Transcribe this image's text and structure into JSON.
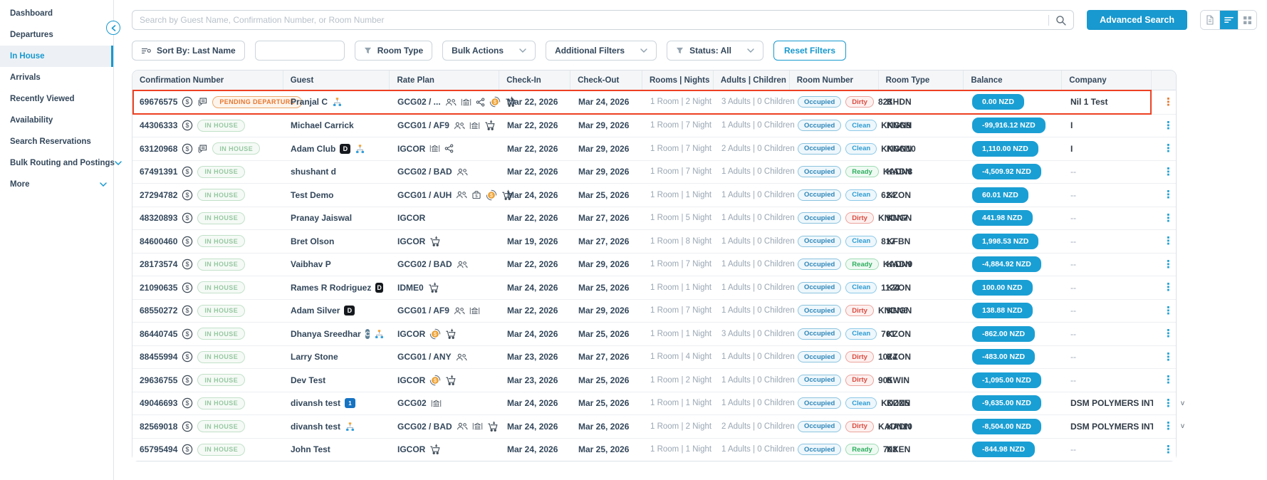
{
  "colors": {
    "accent": "#1899cf",
    "balance_pill": "#1a9fd4",
    "highlight_red": "#ee4123",
    "pending_orange": "#e8772e",
    "inhouse_green": "#96c8a1"
  },
  "sidebar": {
    "items": [
      {
        "label": "Dashboard",
        "active": false,
        "chevron": false
      },
      {
        "label": "Departures",
        "active": false,
        "chevron": false
      },
      {
        "label": "In House",
        "active": true,
        "chevron": false
      },
      {
        "label": "Arrivals",
        "active": false,
        "chevron": false
      },
      {
        "label": "Recently Viewed",
        "active": false,
        "chevron": false
      },
      {
        "label": "Availability",
        "active": false,
        "chevron": false
      },
      {
        "label": "Search Reservations",
        "active": false,
        "chevron": false
      },
      {
        "label": "Bulk Routing and Postings",
        "active": false,
        "chevron": true
      },
      {
        "label": "More",
        "active": false,
        "chevron": true
      }
    ],
    "collapse_icon": "chevron-left-icon"
  },
  "topbar": {
    "search_placeholder": "Search by Guest Name, Confirmation Number, or Room Number",
    "advanced_search_label": "Advanced Search",
    "view_toggle": [
      {
        "icon": "document-icon",
        "active": false
      },
      {
        "icon": "list-view-icon",
        "active": true
      },
      {
        "icon": "grid-view-icon",
        "active": false
      }
    ]
  },
  "filters": {
    "sort_by": "Sort By: Last Name",
    "room_type": "Room Type",
    "bulk_actions": "Bulk Actions",
    "additional_filters": "Additional Filters",
    "status": "Status: All",
    "reset": "Reset Filters"
  },
  "table": {
    "columns": [
      "Confirmation Number",
      "Guest",
      "Rate Plan",
      "Check-In",
      "Check-Out",
      "Rooms | Nights",
      "Adults | Children",
      "Room Number",
      "Room Type",
      "Balance",
      "Company",
      ""
    ],
    "rows": [
      {
        "confirmation": "69676575",
        "conf_icons": [
          "dollar-icon",
          "chat-icon"
        ],
        "status": {
          "label": "PENDING DEPARTURE",
          "type": "pending"
        },
        "guest": {
          "name": "Pranjal C",
          "badges": [],
          "icons": [
            "hierarchy-icon"
          ]
        },
        "rate_plan": {
          "text": "GCG02 / ...",
          "icons": [
            "group-icon",
            "building-icon",
            "share-icon",
            "coin-icon",
            "cart-icon"
          ]
        },
        "check_in": "Mar 22, 2026",
        "check_out": "Mar 24, 2026",
        "rooms_nights": "1 Room | 2 Night",
        "adults_children": "3 Adults | 0 Children",
        "room": {
          "occupancy": "Occupied",
          "housekeeping": "Dirty",
          "number": "823"
        },
        "room_type": "KHDN",
        "balance": "0.00 NZD",
        "company": "Nil 1 Test",
        "highlighted": true,
        "kebab_color": "orange",
        "trailing_mark": ""
      },
      {
        "confirmation": "44306333",
        "conf_icons": [
          "dollar-icon"
        ],
        "status": {
          "label": "IN HOUSE",
          "type": "inhouse"
        },
        "guest": {
          "name": "Michael Carrick",
          "badges": [],
          "icons": []
        },
        "rate_plan": {
          "text": "GCG01 / AF9",
          "icons": [
            "group-icon",
            "building-icon",
            "cart-icon"
          ]
        },
        "check_in": "Mar 22, 2026",
        "check_out": "Mar 29, 2026",
        "rooms_nights": "1 Room | 7 Night",
        "adults_children": "1 Adults | 0 Children",
        "room": {
          "occupancy": "Occupied",
          "housekeeping": "Clean",
          "number": "KNGN9"
        },
        "room_type": "KNGN",
        "balance": "-99,916.12 NZD",
        "company": "I",
        "highlighted": false,
        "kebab_color": "blue",
        "trailing_mark": ""
      },
      {
        "confirmation": "63120968",
        "conf_icons": [
          "dollar-icon",
          "chat-icon"
        ],
        "status": {
          "label": "IN HOUSE",
          "type": "inhouse"
        },
        "guest": {
          "name": "Adam Club",
          "badges": [
            "d-badge"
          ],
          "icons": [
            "hierarchy-icon"
          ]
        },
        "rate_plan": {
          "text": "IGCOR",
          "icons": [
            "building-icon",
            "share-icon"
          ]
        },
        "check_in": "Mar 22, 2026",
        "check_out": "Mar 29, 2026",
        "rooms_nights": "1 Room | 7 Night",
        "adults_children": "2 Adults | 0 Children",
        "room": {
          "occupancy": "Occupied",
          "housekeeping": "Clean",
          "number": "KNGN10"
        },
        "room_type": "KNGN",
        "balance": "1,110.00 NZD",
        "company": "I",
        "highlighted": false,
        "kebab_color": "blue",
        "trailing_mark": ""
      },
      {
        "confirmation": "67491391",
        "conf_icons": [
          "dollar-icon"
        ],
        "status": {
          "label": "IN HOUSE",
          "type": "inhouse"
        },
        "guest": {
          "name": "shushant d",
          "badges": [],
          "icons": []
        },
        "rate_plan": {
          "text": "GCG02 / BAD",
          "icons": [
            "group-icon"
          ]
        },
        "check_in": "Mar 22, 2026",
        "check_out": "Mar 29, 2026",
        "rooms_nights": "1 Room | 7 Night",
        "adults_children": "1 Adults | 0 Children",
        "room": {
          "occupancy": "Occupied",
          "housekeeping": "Ready",
          "number": "KADN8"
        },
        "room_type": "KADN",
        "balance": "-4,509.92 NZD",
        "company": "--",
        "highlighted": false,
        "kebab_color": "blue",
        "trailing_mark": ""
      },
      {
        "confirmation": "27294782",
        "conf_icons": [
          "dollar-icon"
        ],
        "status": {
          "label": "IN HOUSE",
          "type": "inhouse"
        },
        "guest": {
          "name": "Test Demo",
          "badges": [],
          "icons": []
        },
        "rate_plan": {
          "text": "GCG01 / AUH",
          "icons": [
            "group-icon",
            "briefcase-icon",
            "coin-icon",
            "cart-icon"
          ]
        },
        "check_in": "Mar 24, 2026",
        "check_out": "Mar 25, 2026",
        "rooms_nights": "1 Room | 1 Night",
        "adults_children": "1 Adults | 0 Children",
        "room": {
          "occupancy": "Occupied",
          "housekeeping": "Clean",
          "number": "624"
        },
        "room_type": "KZON",
        "balance": "60.01 NZD",
        "company": "--",
        "highlighted": false,
        "kebab_color": "blue",
        "trailing_mark": ""
      },
      {
        "confirmation": "48320893",
        "conf_icons": [
          "dollar-icon"
        ],
        "status": {
          "label": "IN HOUSE",
          "type": "inhouse"
        },
        "guest": {
          "name": "Pranay Jaiswal",
          "badges": [],
          "icons": []
        },
        "rate_plan": {
          "text": "IGCOR",
          "icons": []
        },
        "check_in": "Mar 22, 2026",
        "check_out": "Mar 27, 2026",
        "rooms_nights": "1 Room | 5 Night",
        "adults_children": "1 Adults | 0 Children",
        "room": {
          "occupancy": "Occupied",
          "housekeeping": "Dirty",
          "number": "KNGN7"
        },
        "room_type": "KNGN",
        "balance": "441.98 NZD",
        "company": "--",
        "highlighted": false,
        "kebab_color": "blue",
        "trailing_mark": ""
      },
      {
        "confirmation": "84600460",
        "conf_icons": [
          "dollar-icon"
        ],
        "status": {
          "label": "IN HOUSE",
          "type": "inhouse"
        },
        "guest": {
          "name": "Bret Olson",
          "badges": [],
          "icons": []
        },
        "rate_plan": {
          "text": "IGCOR",
          "icons": [
            "cart-icon"
          ]
        },
        "check_in": "Mar 19, 2026",
        "check_out": "Mar 27, 2026",
        "rooms_nights": "1 Room | 8 Night",
        "adults_children": "1 Adults | 0 Children",
        "room": {
          "occupancy": "Occupied",
          "housekeeping": "Clean",
          "number": "817"
        },
        "room_type": "KFBN",
        "balance": "1,998.53 NZD",
        "company": "--",
        "highlighted": false,
        "kebab_color": "blue",
        "trailing_mark": ""
      },
      {
        "confirmation": "28173574",
        "conf_icons": [
          "dollar-icon"
        ],
        "status": {
          "label": "IN HOUSE",
          "type": "inhouse"
        },
        "guest": {
          "name": "Vaibhav P",
          "badges": [],
          "icons": []
        },
        "rate_plan": {
          "text": "GCG02 / BAD",
          "icons": [
            "group-icon"
          ]
        },
        "check_in": "Mar 22, 2026",
        "check_out": "Mar 29, 2026",
        "rooms_nights": "1 Room | 7 Night",
        "adults_children": "1 Adults | 0 Children",
        "room": {
          "occupancy": "Occupied",
          "housekeeping": "Ready",
          "number": "KADN9"
        },
        "room_type": "KADN",
        "balance": "-4,884.92 NZD",
        "company": "--",
        "highlighted": false,
        "kebab_color": "blue",
        "trailing_mark": ""
      },
      {
        "confirmation": "21090635",
        "conf_icons": [
          "dollar-icon"
        ],
        "status": {
          "label": "IN HOUSE",
          "type": "inhouse"
        },
        "guest": {
          "name": "Rames R Rodriguez",
          "badges": [
            "d-badge"
          ],
          "icons": []
        },
        "rate_plan": {
          "text": "IDME0",
          "icons": [
            "cart-icon"
          ]
        },
        "check_in": "Mar 24, 2026",
        "check_out": "Mar 25, 2026",
        "rooms_nights": "1 Room | 1 Night",
        "adults_children": "1 Adults | 0 Children",
        "room": {
          "occupancy": "Occupied",
          "housekeeping": "Clean",
          "number": "1124"
        },
        "room_type": "KZON",
        "balance": "100.00 NZD",
        "company": "--",
        "highlighted": false,
        "kebab_color": "blue",
        "trailing_mark": ""
      },
      {
        "confirmation": "68550272",
        "conf_icons": [
          "dollar-icon"
        ],
        "status": {
          "label": "IN HOUSE",
          "type": "inhouse"
        },
        "guest": {
          "name": "Adam Silver",
          "badges": [
            "d-badge"
          ],
          "icons": []
        },
        "rate_plan": {
          "text": "GCG01 / AF9",
          "icons": [
            "group-icon",
            "building-icon"
          ]
        },
        "check_in": "Mar 22, 2026",
        "check_out": "Mar 29, 2026",
        "rooms_nights": "1 Room | 7 Night",
        "adults_children": "1 Adults | 0 Children",
        "room": {
          "occupancy": "Occupied",
          "housekeeping": "Dirty",
          "number": "KNGN6"
        },
        "room_type": "KNGN",
        "balance": "138.88 NZD",
        "company": "--",
        "highlighted": false,
        "kebab_color": "blue",
        "trailing_mark": ""
      },
      {
        "confirmation": "86440745",
        "conf_icons": [
          "dollar-icon"
        ],
        "status": {
          "label": "IN HOUSE",
          "type": "inhouse"
        },
        "guest": {
          "name": "Dhanya Sreedhar",
          "badges": [
            "c-badge"
          ],
          "icons": [
            "hierarchy-icon"
          ]
        },
        "rate_plan": {
          "text": "IGCOR",
          "icons": [
            "coin-icon",
            "cart-icon"
          ]
        },
        "check_in": "Mar 24, 2026",
        "check_out": "Mar 25, 2026",
        "rooms_nights": "1 Room | 1 Night",
        "adults_children": "3 Adults | 0 Children",
        "room": {
          "occupancy": "Occupied",
          "housekeeping": "Clean",
          "number": "701"
        },
        "room_type": "KZON",
        "balance": "-862.00 NZD",
        "company": "--",
        "highlighted": false,
        "kebab_color": "blue",
        "trailing_mark": ""
      },
      {
        "confirmation": "88455994",
        "conf_icons": [
          "dollar-icon"
        ],
        "status": {
          "label": "IN HOUSE",
          "type": "inhouse"
        },
        "guest": {
          "name": "Larry Stone",
          "badges": [],
          "icons": []
        },
        "rate_plan": {
          "text": "GCG01 / ANY",
          "icons": [
            "group-icon"
          ]
        },
        "check_in": "Mar 23, 2026",
        "check_out": "Mar 27, 2026",
        "rooms_nights": "1 Room | 4 Night",
        "adults_children": "1 Adults | 0 Children",
        "room": {
          "occupancy": "Occupied",
          "housekeeping": "Dirty",
          "number": "1024"
        },
        "room_type": "KZON",
        "balance": "-483.00 NZD",
        "company": "--",
        "highlighted": false,
        "kebab_color": "blue",
        "trailing_mark": ""
      },
      {
        "confirmation": "29636755",
        "conf_icons": [
          "dollar-icon"
        ],
        "status": {
          "label": "IN HOUSE",
          "type": "inhouse"
        },
        "guest": {
          "name": "Dev Test",
          "badges": [],
          "icons": []
        },
        "rate_plan": {
          "text": "IGCOR",
          "icons": [
            "coin-icon",
            "cart-icon"
          ]
        },
        "check_in": "Mar 23, 2026",
        "check_out": "Mar 25, 2026",
        "rooms_nights": "1 Room | 2 Night",
        "adults_children": "1 Adults | 0 Children",
        "room": {
          "occupancy": "Occupied",
          "housekeeping": "Dirty",
          "number": "905"
        },
        "room_type": "KWIN",
        "balance": "-1,095.00 NZD",
        "company": "--",
        "highlighted": false,
        "kebab_color": "blue",
        "trailing_mark": ""
      },
      {
        "confirmation": "49046693",
        "conf_icons": [
          "dollar-icon"
        ],
        "status": {
          "label": "IN HOUSE",
          "type": "inhouse"
        },
        "guest": {
          "name": "divansh test",
          "badges": [
            "card-badge"
          ],
          "icons": []
        },
        "rate_plan": {
          "text": "GCG02",
          "icons": [
            "building-icon"
          ]
        },
        "check_in": "Mar 24, 2026",
        "check_out": "Mar 25, 2026",
        "rooms_nights": "1 Room | 1 Night",
        "adults_children": "1 Adults | 0 Children",
        "room": {
          "occupancy": "Occupied",
          "housekeeping": "Clean",
          "number": "KDZN5"
        },
        "room_type": "KDZN",
        "balance": "-9,635.00 NZD",
        "company": "DSM POLYMERS INTERNATIO",
        "highlighted": false,
        "kebab_color": "blue",
        "trailing_mark": "v"
      },
      {
        "confirmation": "82569018",
        "conf_icons": [
          "dollar-icon"
        ],
        "status": {
          "label": "IN HOUSE",
          "type": "inhouse"
        },
        "guest": {
          "name": "divansh test",
          "badges": [],
          "icons": [
            "hierarchy-icon"
          ]
        },
        "rate_plan": {
          "text": "GCG02 / BAD",
          "icons": [
            "group-icon",
            "building-icon",
            "cart-icon"
          ]
        },
        "check_in": "Mar 24, 2026",
        "check_out": "Mar 26, 2026",
        "rooms_nights": "1 Room | 2 Night",
        "adults_children": "2 Adults | 0 Children",
        "room": {
          "occupancy": "Occupied",
          "housekeeping": "Dirty",
          "number": "KADN10"
        },
        "room_type": "KADN",
        "balance": "-8,504.00 NZD",
        "company": "DSM POLYMERS INTERNATIO",
        "highlighted": false,
        "kebab_color": "blue",
        "trailing_mark": "v"
      },
      {
        "confirmation": "65795494",
        "conf_icons": [
          "dollar-icon"
        ],
        "status": {
          "label": "IN HOUSE",
          "type": "inhouse"
        },
        "guest": {
          "name": "John Test",
          "badges": [],
          "icons": []
        },
        "rate_plan": {
          "text": "IGCOR",
          "icons": [
            "cart-icon"
          ]
        },
        "check_in": "Mar 24, 2026",
        "check_out": "Mar 25, 2026",
        "rooms_nights": "1 Room | 1 Night",
        "adults_children": "1 Adults | 0 Children",
        "room": {
          "occupancy": "Occupied",
          "housekeeping": "Ready",
          "number": "708"
        },
        "room_type": "KXEN",
        "balance": "-844.98 NZD",
        "company": "--",
        "highlighted": false,
        "kebab_color": "blue",
        "trailing_mark": ""
      }
    ]
  }
}
